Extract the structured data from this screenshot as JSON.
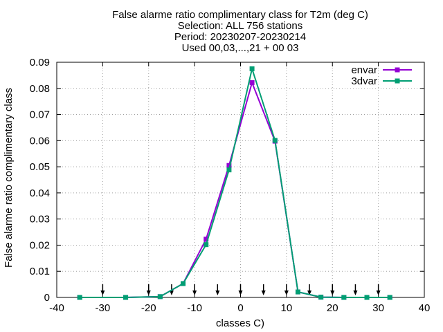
{
  "chart_data": {
    "type": "line",
    "title_lines": [
      "False alarme ratio complimentary class  for T2m (deg C)",
      "Selection: ALL    756 stations",
      "Period: 20230207-20230214",
      "Used 00,03,...,21 + 00 03"
    ],
    "xlabel": "classes C)",
    "ylabel": "False alarme ratio complimentary class",
    "xlim": [
      -40,
      40
    ],
    "ylim": [
      0,
      0.09
    ],
    "xticks": [
      -40,
      -30,
      -20,
      -10,
      0,
      10,
      20,
      30,
      40
    ],
    "yticks": [
      0,
      0.01,
      0.02,
      0.03,
      0.04,
      0.05,
      0.06,
      0.07,
      0.08,
      0.09
    ],
    "xtick_labels": [
      "-40",
      "-30",
      "-20",
      "-10",
      "0",
      "10",
      "20",
      "30",
      "40"
    ],
    "ytick_labels": [
      "0",
      "0.01",
      "0.02",
      "0.03",
      "0.04",
      "0.05",
      "0.06",
      "0.07",
      "0.08",
      "0.09"
    ],
    "grid": true,
    "legend_position": "top-right",
    "series": [
      {
        "name": "envar",
        "color": "#9400d3",
        "x": [
          -35,
          -25,
          -17.5,
          -12.5,
          -7.5,
          -2.5,
          2.5,
          7.5,
          12.5,
          17.5,
          22.5,
          27.5,
          32.5
        ],
        "values": [
          0,
          0,
          0.0003,
          0.0053,
          0.0223,
          0.0505,
          0.0822,
          0.0598,
          0.0021,
          0.0001,
          0,
          0,
          0
        ]
      },
      {
        "name": "3dvar",
        "color": "#009e73",
        "x": [
          -35,
          -25,
          -17.5,
          -12.5,
          -7.5,
          -2.5,
          2.5,
          7.5,
          12.5,
          17.5,
          22.5,
          27.5,
          32.5
        ],
        "values": [
          0,
          0,
          0.0003,
          0.0053,
          0.0202,
          0.0488,
          0.0875,
          0.0601,
          0.0021,
          0.0001,
          0,
          0,
          0
        ]
      }
    ],
    "arrow_markers_x": [
      -30,
      -20,
      -15,
      -10,
      -5,
      0,
      5,
      10,
      15,
      20,
      25,
      30
    ]
  }
}
